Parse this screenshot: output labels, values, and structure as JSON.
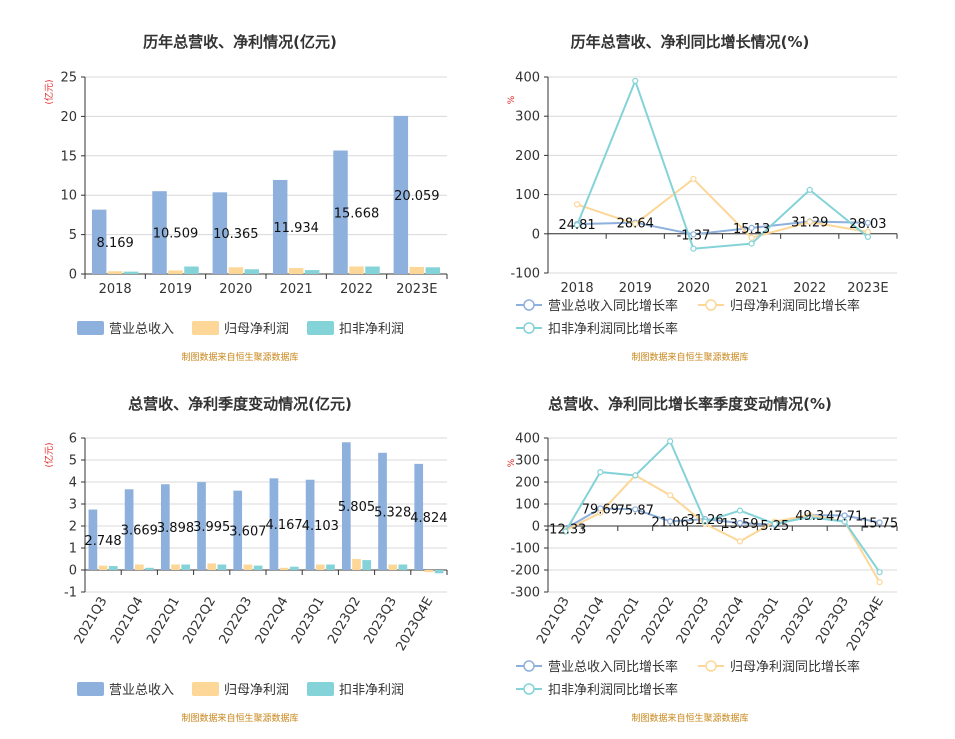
{
  "colors": {
    "revenue": "#8eb0dc",
    "net_profit": "#fcd798",
    "deducted_profit": "#84d3d8",
    "watermark": "#c8861a",
    "unit_label": "#e02020",
    "grid": "#d8d8d8",
    "axis": "#333333",
    "text": "#333333"
  },
  "watermark": "制图数据来自恒生聚源数据库",
  "chart_data": [
    {
      "type": "bar",
      "title": "历年总营收、净利情况(亿元)",
      "ylabel": "(亿元)",
      "ylim": [
        0,
        25
      ],
      "yticks": [
        0,
        5,
        10,
        15,
        20,
        25
      ],
      "categories": [
        "2018",
        "2019",
        "2020",
        "2021",
        "2022",
        "2023E"
      ],
      "series": [
        {
          "name": "营业总收入",
          "values": [
            8.169,
            10.509,
            10.365,
            11.934,
            15.668,
            20.059
          ],
          "labels": [
            "8.169",
            "10.509",
            "10.365",
            "11.934",
            "15.668",
            "20.059"
          ]
        },
        {
          "name": "归母净利润",
          "values": [
            0.35,
            0.45,
            0.85,
            0.75,
            0.95,
            0.9
          ]
        },
        {
          "name": "扣非净利润",
          "values": [
            0.3,
            0.95,
            0.6,
            0.5,
            0.95,
            0.85
          ]
        }
      ],
      "legend": "bottom"
    },
    {
      "type": "line",
      "title": "历年总营收、净利同比增长情况(%)",
      "ylabel": "%",
      "ylim": [
        -100,
        400
      ],
      "yticks": [
        -100,
        0,
        100,
        200,
        300,
        400
      ],
      "categories": [
        "2018",
        "2019",
        "2020",
        "2021",
        "2022",
        "2023E"
      ],
      "series": [
        {
          "name": "营业总收入同比增长率",
          "values": [
            24.81,
            28.64,
            -1.37,
            15.13,
            31.29,
            28.03
          ],
          "labels": [
            "24.81",
            "28.64",
            "-1.37",
            "15.13",
            "31.29",
            "28.03"
          ]
        },
        {
          "name": "归母净利润同比增长率",
          "values": [
            75,
            25,
            140,
            -10,
            30,
            5
          ]
        },
        {
          "name": "扣非净利润同比增长率",
          "values": [
            22,
            390,
            -38,
            -25,
            112,
            -8
          ]
        }
      ],
      "legend": "bottom"
    },
    {
      "type": "bar",
      "title": "总营收、净利季度变动情况(亿元)",
      "ylabel": "(亿元)",
      "ylim": [
        -1,
        6
      ],
      "yticks": [
        -1,
        0,
        1,
        2,
        3,
        4,
        5,
        6
      ],
      "categories": [
        "2021Q3",
        "2021Q4",
        "2022Q1",
        "2022Q2",
        "2022Q3",
        "2022Q4",
        "2023Q1",
        "2023Q2",
        "2023Q3",
        "2023Q4E"
      ],
      "series": [
        {
          "name": "营业总收入",
          "values": [
            2.748,
            3.669,
            3.898,
            3.995,
            3.607,
            4.167,
            4.103,
            5.805,
            5.328,
            4.824
          ],
          "labels": [
            "2.748",
            "3.669",
            "3.898",
            "3.995",
            "3.607",
            "4.167",
            "4.103",
            "5.805",
            "5.328",
            "4.824"
          ]
        },
        {
          "name": "归母净利润",
          "values": [
            0.2,
            0.25,
            0.25,
            0.3,
            0.25,
            0.1,
            0.25,
            0.5,
            0.25,
            -0.1
          ]
        },
        {
          "name": "扣非净利润",
          "values": [
            0.18,
            0.1,
            0.25,
            0.25,
            0.2,
            0.15,
            0.25,
            0.45,
            0.25,
            -0.15
          ]
        }
      ],
      "legend": "bottom"
    },
    {
      "type": "line",
      "title": "总营收、净利同比增长率季度变动情况(%)",
      "ylabel": "%",
      "ylim": [
        -300,
        400
      ],
      "yticks": [
        -300,
        -200,
        -100,
        0,
        100,
        200,
        300,
        400
      ],
      "categories": [
        "2021Q3",
        "2021Q4",
        "2022Q1",
        "2022Q2",
        "2022Q3",
        "2022Q4",
        "2023Q1",
        "2023Q2",
        "2023Q3",
        "2023Q4E"
      ],
      "series": [
        {
          "name": "营业总收入同比增长率",
          "values": [
            -12.33,
            79.69,
            75.87,
            21.06,
            31.26,
            13.59,
            5.25,
            49.3,
            47.71,
            15.75
          ],
          "labels": [
            "-12.33",
            "79.69",
            "75.87",
            "21.06",
            "31.26",
            "13.59",
            "5.25",
            "49.3",
            "47.71",
            "15.75"
          ]
        },
        {
          "name": "归母净利润同比增长率",
          "values": [
            -20,
            60,
            230,
            140,
            10,
            -70,
            20,
            50,
            20,
            -255
          ]
        },
        {
          "name": "扣非净利润同比增长率",
          "values": [
            -25,
            245,
            230,
            385,
            20,
            70,
            10,
            40,
            20,
            -210
          ]
        }
      ],
      "legend": "bottom"
    }
  ]
}
